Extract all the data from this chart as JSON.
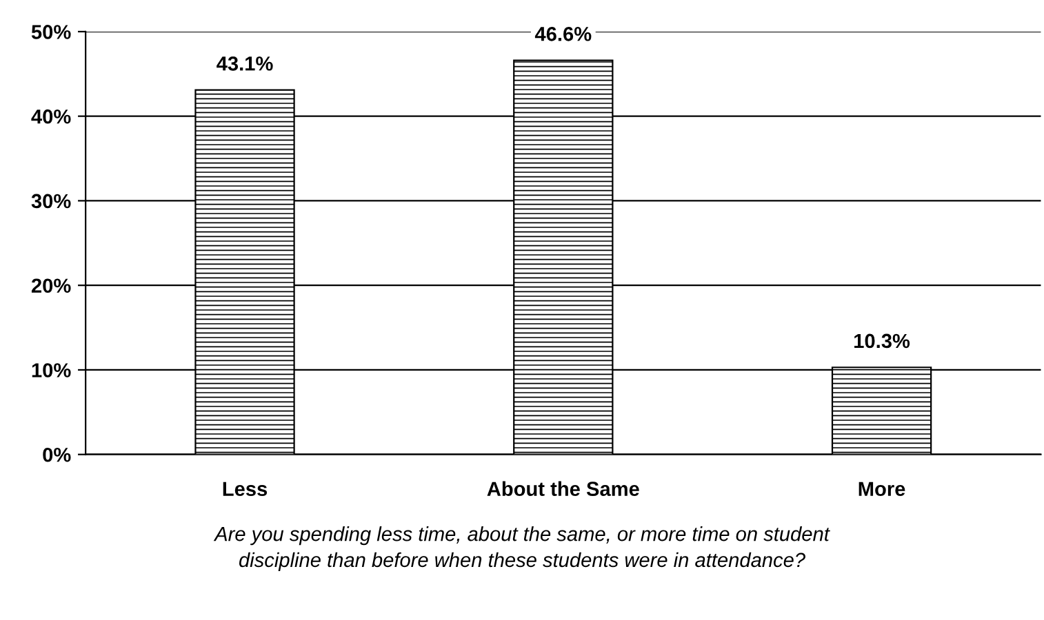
{
  "chart_data": {
    "type": "bar",
    "categories": [
      "Less",
      "About the Same",
      "More"
    ],
    "values": [
      43.1,
      46.6,
      10.3
    ],
    "value_labels": [
      "43.1%",
      "46.6%",
      "10.3%"
    ],
    "color": "#000000",
    "ylim": [
      0,
      50
    ],
    "yticks": [
      {
        "value": 0,
        "label": "0%"
      },
      {
        "value": 10,
        "label": "10%"
      },
      {
        "value": 20,
        "label": "20%"
      },
      {
        "value": 30,
        "label": "30%"
      },
      {
        "value": 40,
        "label": "40%"
      },
      {
        "value": 50,
        "label": "50%"
      }
    ],
    "grid": "y",
    "annotations": [
      "Are you spending less time, about the same, or more time on student\ndiscipline than before when these students were in attendance?"
    ]
  }
}
